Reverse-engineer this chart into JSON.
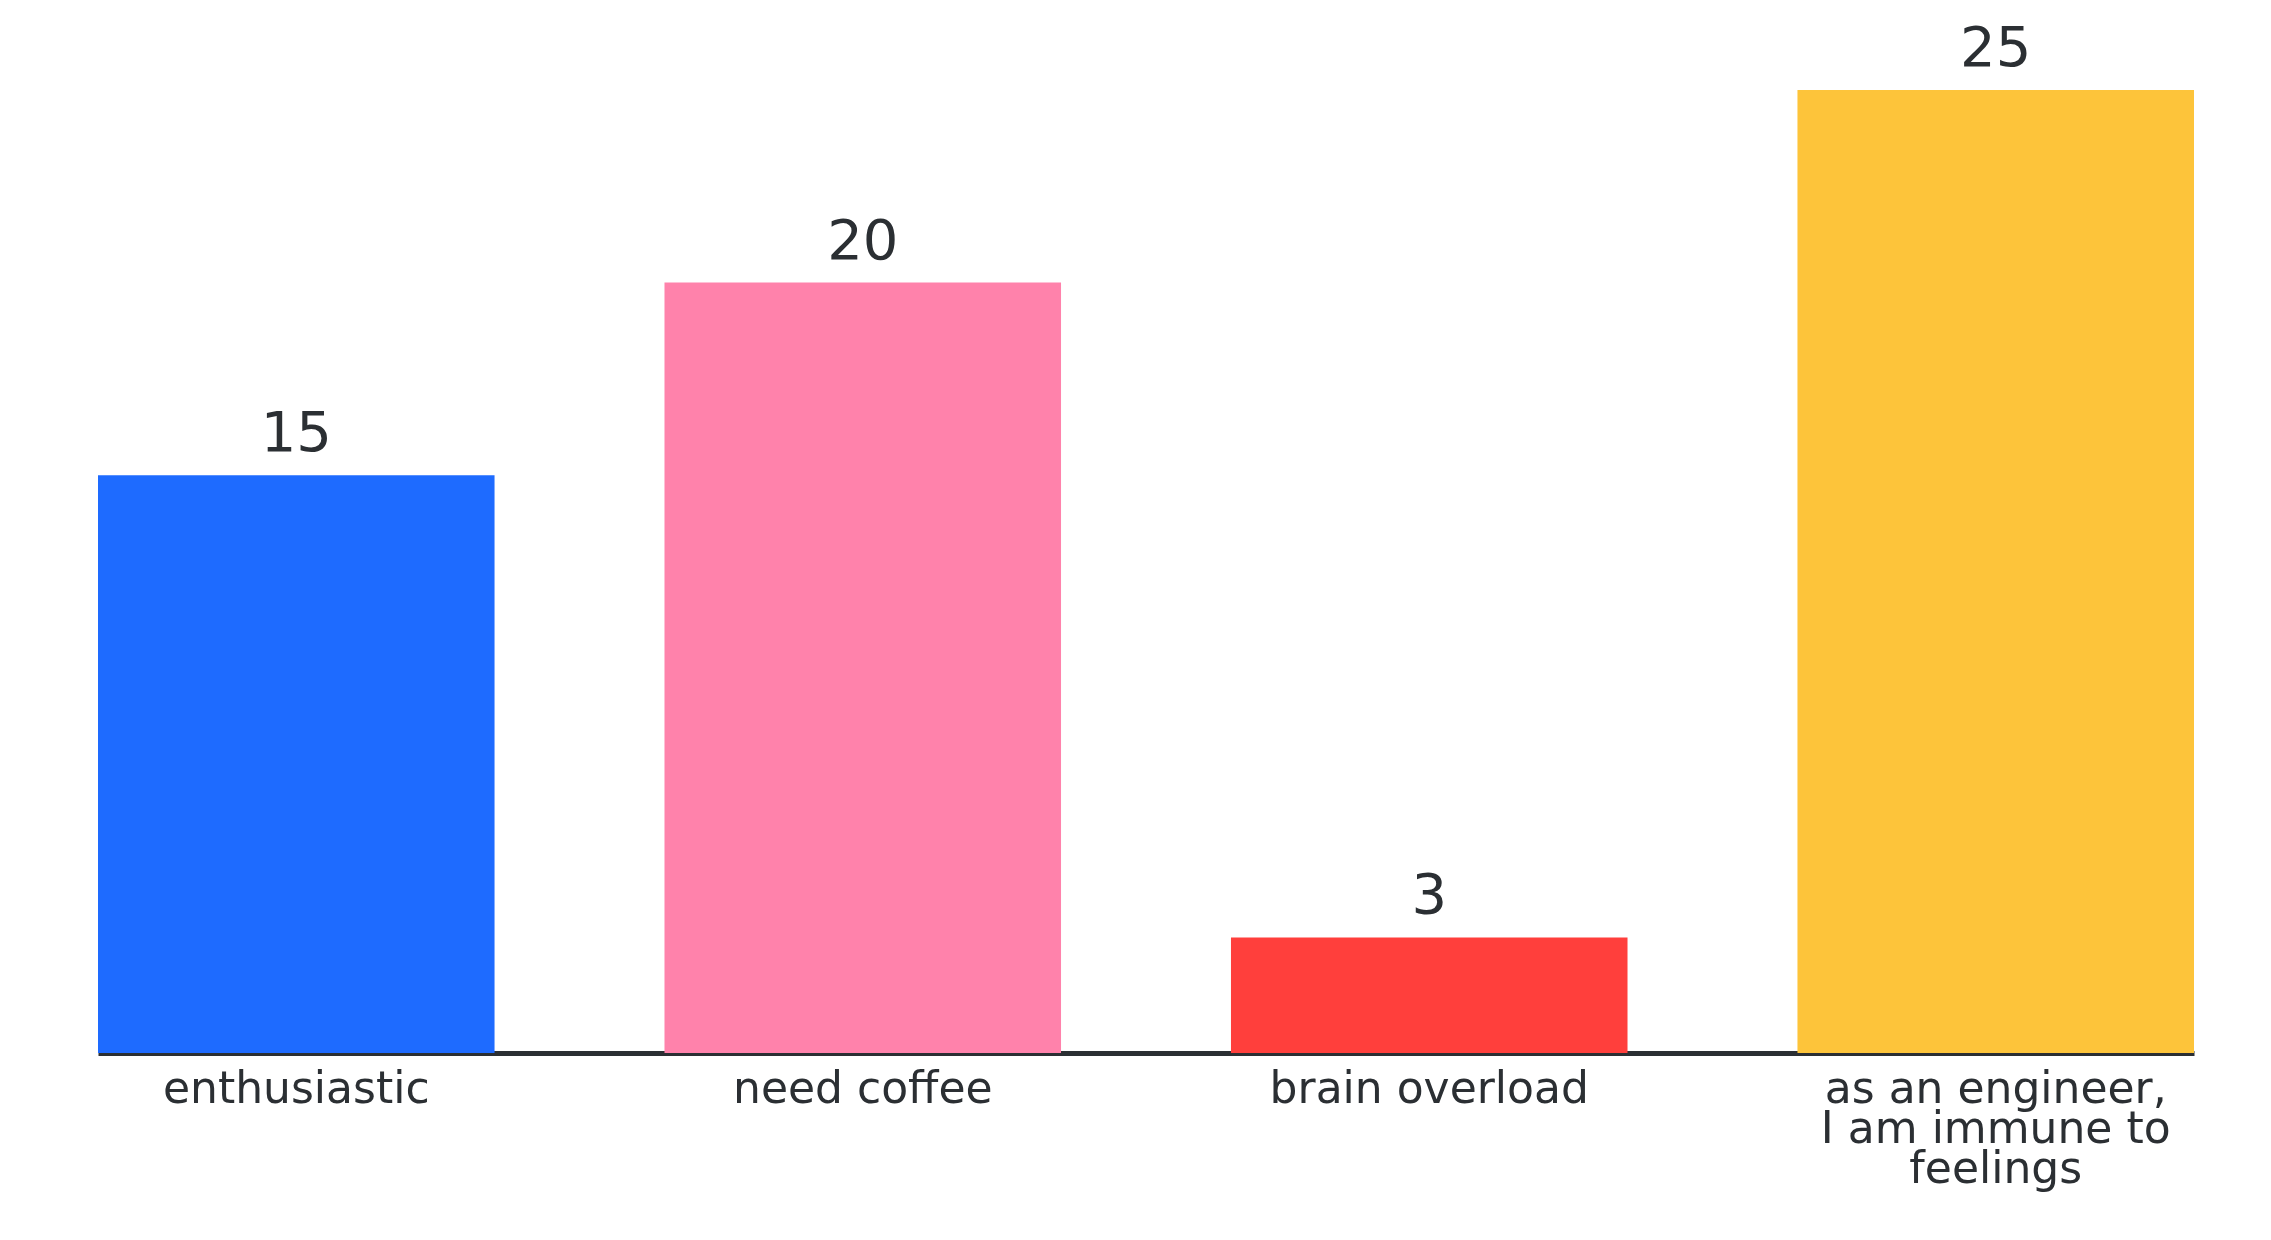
{
  "chart_data": {
    "type": "bar",
    "categories": [
      "enthusiastic",
      "need coffee",
      "brain overload",
      "as an engineer, I am immune to feelings"
    ],
    "values": [
      15,
      20,
      3,
      25
    ],
    "colors": [
      "#1e6bff",
      "#ff82ab",
      "#ff3f3c",
      "#fdc43a"
    ],
    "data_labels": true
  }
}
